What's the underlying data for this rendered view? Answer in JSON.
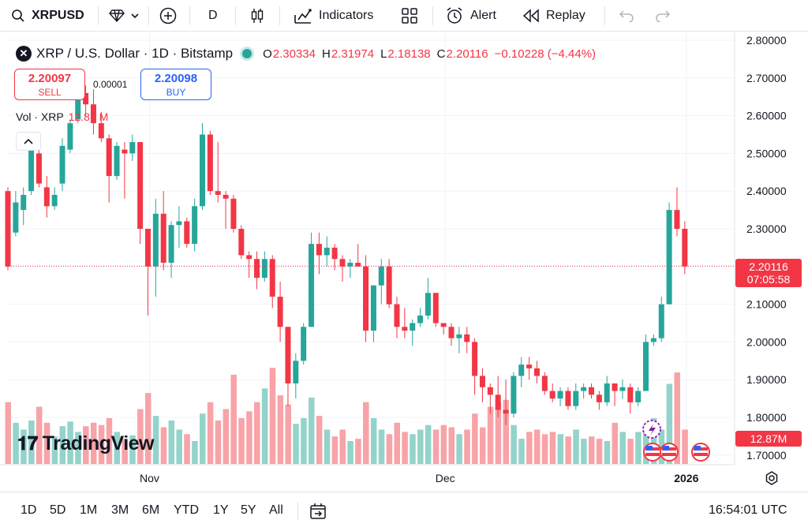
{
  "toolbar": {
    "symbol": "XRPUSD",
    "interval": "D",
    "indicators": "Indicators",
    "alert": "Alert",
    "replay": "Replay"
  },
  "legend": {
    "title": "XRP / U.S. Dollar · 1D · Bitstamp",
    "o_key": "O",
    "o_val": "2.30334",
    "h_key": "H",
    "h_val": "2.31974",
    "l_key": "L",
    "l_val": "2.18138",
    "c_key": "C",
    "c_val": "2.20116",
    "change": "−0.10228 (−4.44%)"
  },
  "trade": {
    "sell_price": "2.20097",
    "sell_label": "SELL",
    "buy_price": "2.20098",
    "buy_label": "BUY",
    "spread": "0.00001"
  },
  "volume_legend": {
    "label": "Vol · XRP",
    "value": "12.87 M"
  },
  "price_tag": {
    "price": "2.20116",
    "countdown": "07:05:58"
  },
  "volume_tag": "12.87M",
  "logo_text": "TradingView",
  "bottom": {
    "ranges": [
      "1D",
      "5D",
      "1M",
      "3M",
      "6M",
      "YTD",
      "1Y",
      "5Y",
      "All"
    ],
    "clock": "16:54:01 UTC"
  },
  "colors": {
    "up": "#26a69a",
    "down": "#f23645",
    "up_vol": "#93d3ca",
    "down_vol": "#f7a3a8"
  },
  "chart_data": {
    "type": "candlestick",
    "title": "XRP / U.S. Dollar · 1D · Bitstamp",
    "y_ticks": [
      "2.80000",
      "2.70000",
      "2.60000",
      "2.50000",
      "2.40000",
      "2.30000",
      "2.20000",
      "2.10000",
      "2.00000",
      "1.90000",
      "1.80000",
      "1.70000"
    ],
    "ylim": [
      1.69,
      2.82
    ],
    "x_ticks": [
      {
        "label": "Nov",
        "index": 18
      },
      {
        "label": "Dec",
        "index": 56
      },
      {
        "label": "2026",
        "index": 87
      }
    ],
    "last_price": 2.20116,
    "candles": [
      {
        "o": 2.4,
        "h": 2.41,
        "l": 2.19,
        "c": 2.2,
        "v": 54
      },
      {
        "o": 2.29,
        "h": 2.4,
        "l": 2.28,
        "c": 2.37,
        "v": 36
      },
      {
        "o": 2.35,
        "h": 2.41,
        "l": 2.31,
        "c": 2.39,
        "v": 30
      },
      {
        "o": 2.4,
        "h": 2.52,
        "l": 2.39,
        "c": 2.51,
        "v": 38
      },
      {
        "o": 2.5,
        "h": 2.53,
        "l": 2.41,
        "c": 2.42,
        "v": 50
      },
      {
        "o": 2.41,
        "h": 2.44,
        "l": 2.33,
        "c": 2.36,
        "v": 36
      },
      {
        "o": 2.36,
        "h": 2.41,
        "l": 2.35,
        "c": 2.39,
        "v": 24
      },
      {
        "o": 2.42,
        "h": 2.54,
        "l": 2.4,
        "c": 2.52,
        "v": 33
      },
      {
        "o": 2.51,
        "h": 2.59,
        "l": 2.5,
        "c": 2.58,
        "v": 37
      },
      {
        "o": 2.59,
        "h": 2.67,
        "l": 2.58,
        "c": 2.66,
        "v": 28
      },
      {
        "o": 2.66,
        "h": 2.68,
        "l": 2.6,
        "c": 2.63,
        "v": 33
      },
      {
        "o": 2.63,
        "h": 2.67,
        "l": 2.55,
        "c": 2.58,
        "v": 36
      },
      {
        "o": 2.58,
        "h": 2.61,
        "l": 2.53,
        "c": 2.54,
        "v": 34
      },
      {
        "o": 2.54,
        "h": 2.55,
        "l": 2.37,
        "c": 2.44,
        "v": 40
      },
      {
        "o": 2.44,
        "h": 2.53,
        "l": 2.43,
        "c": 2.52,
        "v": 28
      },
      {
        "o": 2.51,
        "h": 2.53,
        "l": 2.38,
        "c": 2.5,
        "v": 22
      },
      {
        "o": 2.5,
        "h": 2.55,
        "l": 2.48,
        "c": 2.53,
        "v": 25
      },
      {
        "o": 2.53,
        "h": 2.53,
        "l": 2.26,
        "c": 2.3,
        "v": 48
      },
      {
        "o": 2.3,
        "h": 2.3,
        "l": 2.07,
        "c": 2.2,
        "v": 62
      },
      {
        "o": 2.2,
        "h": 2.38,
        "l": 2.12,
        "c": 2.34,
        "v": 42
      },
      {
        "o": 2.34,
        "h": 2.4,
        "l": 2.19,
        "c": 2.21,
        "v": 32
      },
      {
        "o": 2.21,
        "h": 2.32,
        "l": 2.17,
        "c": 2.31,
        "v": 38
      },
      {
        "o": 2.31,
        "h": 2.36,
        "l": 2.25,
        "c": 2.32,
        "v": 30
      },
      {
        "o": 2.32,
        "h": 2.33,
        "l": 2.25,
        "c": 2.26,
        "v": 26
      },
      {
        "o": 2.26,
        "h": 2.38,
        "l": 2.24,
        "c": 2.36,
        "v": 20
      },
      {
        "o": 2.36,
        "h": 2.58,
        "l": 2.35,
        "c": 2.55,
        "v": 44
      },
      {
        "o": 2.55,
        "h": 2.56,
        "l": 2.39,
        "c": 2.4,
        "v": 54
      },
      {
        "o": 2.4,
        "h": 2.53,
        "l": 2.37,
        "c": 2.39,
        "v": 38
      },
      {
        "o": 2.39,
        "h": 2.4,
        "l": 2.3,
        "c": 2.38,
        "v": 48
      },
      {
        "o": 2.38,
        "h": 2.39,
        "l": 2.29,
        "c": 2.3,
        "v": 78
      },
      {
        "o": 2.3,
        "h": 2.31,
        "l": 2.22,
        "c": 2.23,
        "v": 40
      },
      {
        "o": 2.23,
        "h": 2.24,
        "l": 2.17,
        "c": 2.22,
        "v": 46
      },
      {
        "o": 2.22,
        "h": 2.24,
        "l": 2.14,
        "c": 2.17,
        "v": 54
      },
      {
        "o": 2.17,
        "h": 2.24,
        "l": 2.16,
        "c": 2.22,
        "v": 66
      },
      {
        "o": 2.22,
        "h": 2.23,
        "l": 2.09,
        "c": 2.12,
        "v": 84
      },
      {
        "o": 2.12,
        "h": 2.16,
        "l": 2.0,
        "c": 2.04,
        "v": 60
      },
      {
        "o": 2.04,
        "h": 2.04,
        "l": 1.83,
        "c": 1.89,
        "v": 52
      },
      {
        "o": 1.89,
        "h": 1.97,
        "l": 1.85,
        "c": 1.95,
        "v": 35
      },
      {
        "o": 1.95,
        "h": 2.05,
        "l": 1.94,
        "c": 2.04,
        "v": 40
      },
      {
        "o": 2.04,
        "h": 2.29,
        "l": 2.04,
        "c": 2.26,
        "v": 58
      },
      {
        "o": 2.26,
        "h": 2.29,
        "l": 2.18,
        "c": 2.23,
        "v": 42
      },
      {
        "o": 2.23,
        "h": 2.28,
        "l": 2.2,
        "c": 2.25,
        "v": 30
      },
      {
        "o": 2.25,
        "h": 2.26,
        "l": 2.19,
        "c": 2.22,
        "v": 24
      },
      {
        "o": 2.22,
        "h": 2.23,
        "l": 2.16,
        "c": 2.2,
        "v": 30
      },
      {
        "o": 2.2,
        "h": 2.22,
        "l": 2.17,
        "c": 2.21,
        "v": 20
      },
      {
        "o": 2.21,
        "h": 2.26,
        "l": 2.2,
        "c": 2.2,
        "v": 22
      },
      {
        "o": 2.2,
        "h": 2.23,
        "l": 2.0,
        "c": 2.03,
        "v": 54
      },
      {
        "o": 2.03,
        "h": 2.15,
        "l": 2.0,
        "c": 2.15,
        "v": 40
      },
      {
        "o": 2.15,
        "h": 2.22,
        "l": 2.1,
        "c": 2.2,
        "v": 30
      },
      {
        "o": 2.2,
        "h": 2.22,
        "l": 2.09,
        "c": 2.1,
        "v": 26
      },
      {
        "o": 2.1,
        "h": 2.12,
        "l": 2.01,
        "c": 2.04,
        "v": 36
      },
      {
        "o": 2.04,
        "h": 2.09,
        "l": 2.01,
        "c": 2.03,
        "v": 28
      },
      {
        "o": 2.03,
        "h": 2.06,
        "l": 1.99,
        "c": 2.05,
        "v": 26
      },
      {
        "o": 2.05,
        "h": 2.09,
        "l": 2.04,
        "c": 2.07,
        "v": 30
      },
      {
        "o": 2.07,
        "h": 2.17,
        "l": 2.06,
        "c": 2.13,
        "v": 34
      },
      {
        "o": 2.13,
        "h": 2.13,
        "l": 2.04,
        "c": 2.05,
        "v": 30
      },
      {
        "o": 2.05,
        "h": 2.05,
        "l": 2.02,
        "c": 2.04,
        "v": 34
      },
      {
        "o": 2.04,
        "h": 2.05,
        "l": 1.99,
        "c": 2.01,
        "v": 32
      },
      {
        "o": 2.01,
        "h": 2.04,
        "l": 1.97,
        "c": 2.02,
        "v": 26
      },
      {
        "o": 2.02,
        "h": 2.04,
        "l": 1.97,
        "c": 2.0,
        "v": 30
      },
      {
        "o": 2.0,
        "h": 2.01,
        "l": 1.86,
        "c": 1.91,
        "v": 44
      },
      {
        "o": 1.91,
        "h": 1.93,
        "l": 1.84,
        "c": 1.88,
        "v": 32
      },
      {
        "o": 1.88,
        "h": 1.89,
        "l": 1.81,
        "c": 1.86,
        "v": 50
      },
      {
        "o": 1.86,
        "h": 1.91,
        "l": 1.8,
        "c": 1.82,
        "v": 54
      },
      {
        "o": 1.82,
        "h": 1.9,
        "l": 1.78,
        "c": 1.81,
        "v": 56
      },
      {
        "o": 1.81,
        "h": 1.92,
        "l": 1.8,
        "c": 1.91,
        "v": 34
      },
      {
        "o": 1.91,
        "h": 1.96,
        "l": 1.88,
        "c": 1.94,
        "v": 22
      },
      {
        "o": 1.94,
        "h": 1.96,
        "l": 1.9,
        "c": 1.93,
        "v": 28
      },
      {
        "o": 1.93,
        "h": 1.95,
        "l": 1.89,
        "c": 1.91,
        "v": 30
      },
      {
        "o": 1.91,
        "h": 1.92,
        "l": 1.86,
        "c": 1.87,
        "v": 26
      },
      {
        "o": 1.87,
        "h": 1.89,
        "l": 1.84,
        "c": 1.85,
        "v": 28
      },
      {
        "o": 1.85,
        "h": 1.88,
        "l": 1.83,
        "c": 1.87,
        "v": 26
      },
      {
        "o": 1.87,
        "h": 1.88,
        "l": 1.82,
        "c": 1.83,
        "v": 24
      },
      {
        "o": 1.83,
        "h": 1.89,
        "l": 1.82,
        "c": 1.87,
        "v": 30
      },
      {
        "o": 1.87,
        "h": 1.89,
        "l": 1.85,
        "c": 1.88,
        "v": 22
      },
      {
        "o": 1.88,
        "h": 1.89,
        "l": 1.85,
        "c": 1.86,
        "v": 24
      },
      {
        "o": 1.86,
        "h": 1.87,
        "l": 1.82,
        "c": 1.84,
        "v": 22
      },
      {
        "o": 1.84,
        "h": 1.91,
        "l": 1.83,
        "c": 1.89,
        "v": 20
      },
      {
        "o": 1.89,
        "h": 1.89,
        "l": 1.83,
        "c": 1.87,
        "v": 36
      },
      {
        "o": 1.87,
        "h": 1.9,
        "l": 1.85,
        "c": 1.88,
        "v": 28
      },
      {
        "o": 1.88,
        "h": 1.89,
        "l": 1.81,
        "c": 1.84,
        "v": 22
      },
      {
        "o": 1.84,
        "h": 1.88,
        "l": 1.83,
        "c": 1.87,
        "v": 28
      },
      {
        "o": 1.87,
        "h": 2.02,
        "l": 1.87,
        "c": 2.0,
        "v": 34
      },
      {
        "o": 2.0,
        "h": 2.02,
        "l": 1.99,
        "c": 2.01,
        "v": 40
      },
      {
        "o": 2.01,
        "h": 2.12,
        "l": 2.0,
        "c": 2.1,
        "v": 30
      },
      {
        "o": 2.1,
        "h": 2.37,
        "l": 2.1,
        "c": 2.35,
        "v": 70
      },
      {
        "o": 2.35,
        "h": 2.41,
        "l": 2.28,
        "c": 2.3,
        "v": 80
      },
      {
        "o": 2.3,
        "h": 2.32,
        "l": 2.18,
        "c": 2.2,
        "v": 30
      }
    ]
  }
}
